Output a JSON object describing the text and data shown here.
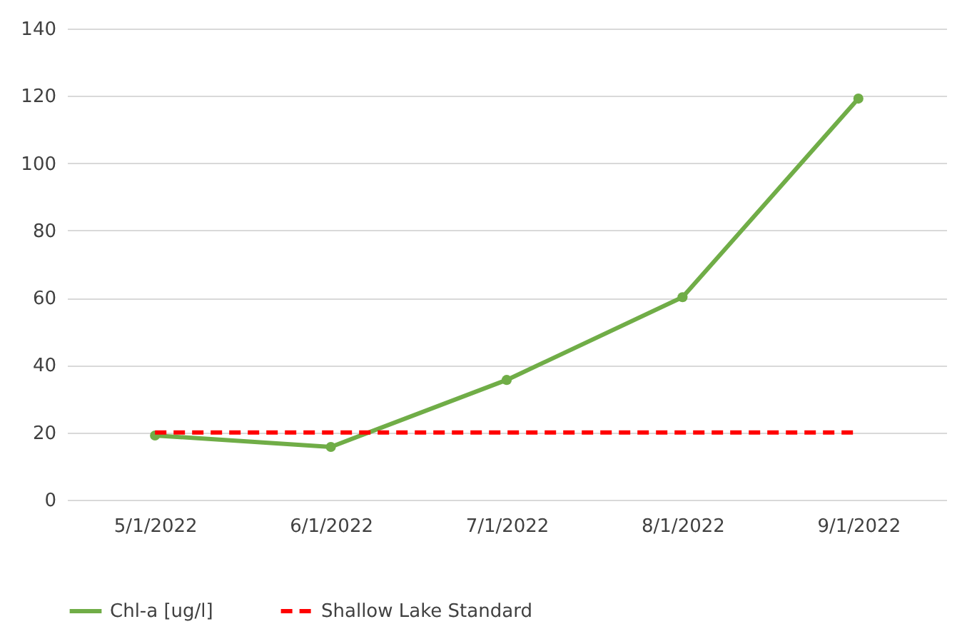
{
  "chart_data": {
    "type": "line",
    "categories": [
      "5/1/2022",
      "6/1/2022",
      "7/1/2022",
      "8/1/2022",
      "9/1/2022"
    ],
    "series": [
      {
        "name": "Chl-a [ug/l]",
        "color": "#70ad47",
        "values": [
          19.1,
          15.7,
          35.6,
          60.2,
          119.2
        ],
        "marker": "circle",
        "line_style": "solid"
      },
      {
        "name": "Shallow Lake Standard",
        "color": "#ff0000",
        "values": [
          20,
          20,
          20,
          20,
          20
        ],
        "marker": "none",
        "line_style": "dashed"
      }
    ],
    "ylim": [
      0,
      140
    ],
    "yticks": [
      0,
      20,
      40,
      60,
      80,
      100,
      120,
      140
    ],
    "grid": "y",
    "legend": "bottom"
  }
}
